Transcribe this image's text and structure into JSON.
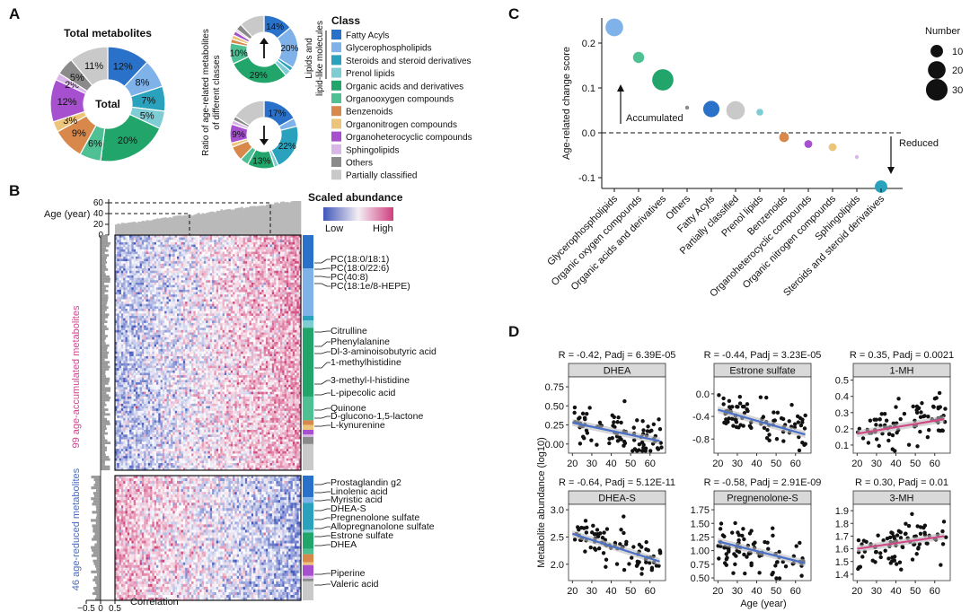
{
  "colors": {
    "Fatty Acyls": "#2a72c9",
    "Glycerophospholipids": "#7fb2e8",
    "Steroids and steroid derivatives": "#2aa2bd",
    "Prenol lipids": "#7fcdd4",
    "Organic acids and derivatives": "#22a56b",
    "Organooxygen compounds": "#4fbf94",
    "Benzenoids": "#d7884a",
    "Organonitrogen compounds": "#ecc47a",
    "Organoheterocyclic compounds": "#a64fcf",
    "Sphingolipids": "#d9b6e8",
    "Others": "#8a8a8a",
    "Partially classified": "#c9c9c9",
    "accumulated": "#d2478f",
    "reduced": "#4a6bbf",
    "fitBlue": "#4a70c8",
    "fitPink": "#cf4a86"
  },
  "panelA": {
    "letter": "A",
    "title": "Total metabolites",
    "center": "Total",
    "y_label_lines": [
      "Ratio of age-related metabolites",
      "of different classes"
    ],
    "side_label_lines": [
      "Lipids and",
      "lipid-like molecules"
    ],
    "legend_title": "Class",
    "legend": [
      "Fatty Acyls",
      "Glycerophospholipids",
      "Steroids and steroid derivatives",
      "Prenol lipids",
      "Organic acids and derivatives",
      "Organooxygen compounds",
      "Benzenoids",
      "Organonitrogen compounds",
      "Organoheterocyclic compounds",
      "Sphingolipids",
      "Others",
      "Partially classified"
    ]
  },
  "panelB": {
    "letter": "B",
    "age_label": "Age (year)",
    "age_ticks": [
      "60",
      "40",
      "20",
      "0"
    ],
    "scale_title": "Scaled abundance",
    "scale_low": "Low",
    "scale_high": "High",
    "acc_label": "99 age-accumulated metabolites",
    "red_label": "46 age-reduced metabolites",
    "corr_ticks": [
      "−0.5",
      "0",
      "0.5"
    ],
    "corr_label": "Correlation",
    "acc_metabolites": [
      "PC(18:0/18:1)",
      "PC(18:0/22:6)",
      "PC(40:8)",
      "PC(18:1e/8-HEPE)",
      "Citrulline",
      "Phenylalanine",
      "Dl-3-aminoisobutyric acid",
      "1-methylhistidine",
      "3-methyl-l-histidine",
      "L-pipecolic acid",
      "Quinone",
      "D-glucono-1,5-lactone",
      "L-kynurenine"
    ],
    "red_metabolites": [
      "Prostaglandin g2",
      "Linolenic acid",
      "Myristic acid",
      "DHEA-S",
      "Pregnenolone sulfate",
      "Allopregnanolone sulfate",
      "Estrone sulfate",
      "DHEA",
      "Piperine",
      "Valeric acid"
    ]
  },
  "panelC": {
    "letter": "C",
    "ylabel": "Age-related change score",
    "size_legend_title": "Number",
    "size_legend": [
      "10",
      "20",
      "30"
    ],
    "annot_up": "Accumulated",
    "annot_down": "Reduced",
    "yticks": [
      "0.2",
      "0.1",
      "0.0",
      "-0.1"
    ]
  },
  "panelD": {
    "letter": "D",
    "ylabel": "Metabolite abundance (log10)",
    "xlabel": "Age (year)",
    "xticks": [
      "20",
      "30",
      "40",
      "50",
      "60"
    ],
    "plots": [
      {
        "title": "DHEA",
        "stat": "R = -0.42, Padj = 6.39E-05",
        "yticks": [
          "0.75",
          "0.50",
          "0.25",
          "0.00"
        ]
      },
      {
        "title": "Estrone sulfate",
        "stat": "R = -0.44, Padj = 3.23E-05",
        "yticks": [
          "0.0",
          "-0.4",
          "-0.8"
        ]
      },
      {
        "title": "1-MH",
        "stat": "R = 0.35, Padj = 0.0021",
        "yticks": [
          "0.5",
          "0.4",
          "0.3",
          "0.2",
          "0.1"
        ]
      },
      {
        "title": "DHEA-S",
        "stat": "R = -0.64, Padj = 5.12E-11",
        "yticks": [
          "3.0",
          "2.5",
          "2.0"
        ]
      },
      {
        "title": "Pregnenolone-S",
        "stat": "R = -0.58, Padj = 2.91E-09",
        "yticks": [
          "1.75",
          "1.50",
          "1.25",
          "1.00",
          "0.75",
          "0.50"
        ]
      },
      {
        "title": "3-MH",
        "stat": "R = 0.30, Padj = 0.01",
        "yticks": [
          "1.9",
          "1.8",
          "1.7",
          "1.6",
          "1.5",
          "1.4"
        ]
      }
    ]
  },
  "chart_data": [
    {
      "type": "pie",
      "title": "Total metabolites",
      "categories": [
        "Fatty Acyls",
        "Glycerophospholipids",
        "Steroids and steroid derivatives",
        "Prenol lipids",
        "Organic acids and derivatives",
        "Organooxygen compounds",
        "Benzenoids",
        "Organonitrogen compounds",
        "Organoheterocyclic compounds",
        "Sphingolipids",
        "Others",
        "Partially classified"
      ],
      "values": [
        12,
        8,
        7,
        5,
        20,
        6,
        9,
        3,
        12,
        2,
        5,
        11
      ]
    },
    {
      "type": "pie",
      "title": "Age-accumulated",
      "categories": [
        "Fatty Acyls",
        "Glycerophospholipids",
        "Steroids and steroid derivatives",
        "Prenol lipids",
        "Organic acids and derivatives",
        "Organooxygen compounds",
        "Benzenoids",
        "Organonitrogen compounds",
        "Organoheterocyclic compounds",
        "Sphingolipids",
        "Others",
        "Partially classified"
      ],
      "values": [
        14,
        20,
        2,
        3,
        29,
        10,
        2,
        2,
        2,
        1,
        3,
        12
      ]
    },
    {
      "type": "pie",
      "title": "Age-reduced",
      "categories": [
        "Fatty Acyls",
        "Glycerophospholipids",
        "Steroids and steroid derivatives",
        "Prenol lipids",
        "Organic acids and derivatives",
        "Organooxygen compounds",
        "Benzenoids",
        "Organonitrogen compounds",
        "Organoheterocyclic compounds",
        "Sphingolipids",
        "Others",
        "Partially classified"
      ],
      "values": [
        17,
        4,
        22,
        2,
        13,
        4,
        7,
        2,
        9,
        2,
        2,
        16
      ]
    },
    {
      "type": "scatter",
      "title": "",
      "ylabel": "Age-related change score",
      "ylim": [
        -0.13,
        0.25
      ],
      "categories": [
        "Glycerophospholipids",
        "Organic oxygen compounds",
        "Organic acids and derivatives",
        "Others",
        "Fatty Acyls",
        "Partially classified",
        "Prenol lipids",
        "Benzenoids",
        "Organoheterocyclic compounds",
        "Organic nitrogen compounds",
        "Sphingolipids",
        "Steroids and steroid derivatives"
      ],
      "values": [
        0.235,
        0.168,
        0.118,
        0.056,
        0.053,
        0.05,
        0.046,
        -0.01,
        -0.025,
        -0.032,
        -0.054,
        -0.12
      ],
      "sizes": [
        20,
        8,
        29,
        1,
        17,
        22,
        3,
        6,
        4,
        4,
        1,
        10
      ]
    },
    {
      "type": "scatter",
      "title": "DHEA",
      "xlabel": "Age (year)",
      "ylim": [
        -0.12,
        0.88
      ],
      "xlim": [
        18,
        68
      ],
      "fit": {
        "y_at_20": 0.28,
        "y_at_65": 0.04
      }
    },
    {
      "type": "scatter",
      "title": "Estrone sulfate",
      "ylim": [
        -1.05,
        0.3
      ],
      "xlim": [
        18,
        68
      ],
      "fit": {
        "y_at_20": -0.28,
        "y_at_65": -0.72
      }
    },
    {
      "type": "scatter",
      "title": "1-MH",
      "ylim": [
        0.05,
        0.52
      ],
      "xlim": [
        18,
        68
      ],
      "fit": {
        "y_at_20": 0.17,
        "y_at_65": 0.26
      }
    },
    {
      "type": "scatter",
      "title": "DHEA-S",
      "ylim": [
        1.7,
        3.1
      ],
      "xlim": [
        18,
        68
      ],
      "fit": {
        "y_at_20": 2.56,
        "y_at_65": 2.05
      }
    },
    {
      "type": "scatter",
      "title": "Pregnenolone-S",
      "ylim": [
        0.45,
        1.85
      ],
      "xlim": [
        18,
        68
      ],
      "fit": {
        "y_at_20": 1.17,
        "y_at_65": 0.77
      }
    },
    {
      "type": "scatter",
      "title": "3-MH",
      "ylim": [
        1.35,
        1.95
      ],
      "xlim": [
        18,
        68
      ],
      "fit": {
        "y_at_20": 1.6,
        "y_at_65": 1.7
      }
    }
  ]
}
